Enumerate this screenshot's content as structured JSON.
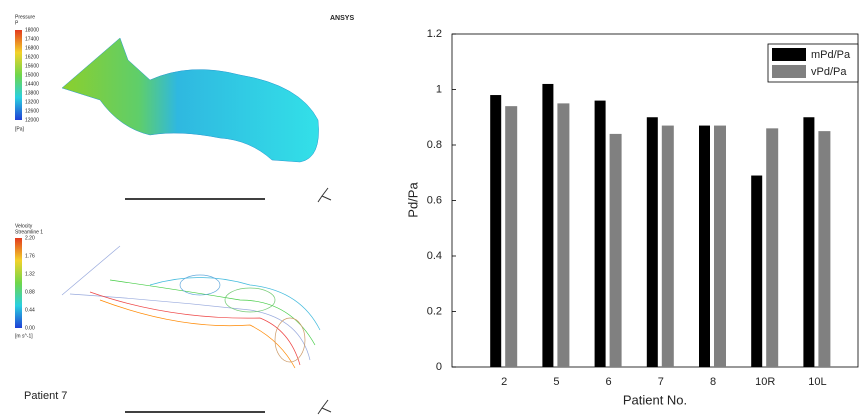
{
  "left_panel": {
    "brand": "ANSYS",
    "pressure_legend": {
      "title": "Pressure",
      "variable": "P",
      "labels": [
        "18000",
        "17400",
        "16800",
        "16200",
        "15600",
        "15000",
        "14400",
        "13800",
        "13200",
        "12600",
        "12000"
      ],
      "unit": "[Pa]"
    },
    "velocity_legend": {
      "title": "Velocity",
      "variable": "Streamline 1",
      "labels": [
        "2.20",
        "1.76",
        "1.32",
        "0.88",
        "0.44",
        "0.00"
      ],
      "unit": "[m s^-1]"
    },
    "caption": "Patient 7"
  },
  "chart_data": {
    "type": "bar",
    "categories": [
      "2",
      "5",
      "6",
      "7",
      "8",
      "10R",
      "10L"
    ],
    "series": [
      {
        "name": "mPd/Pa",
        "color": "#000000",
        "values": [
          0.98,
          1.02,
          0.96,
          0.9,
          0.87,
          0.69,
          0.9
        ]
      },
      {
        "name": "vPd/Pa",
        "color": "#808080",
        "values": [
          0.94,
          0.95,
          0.84,
          0.87,
          0.87,
          0.86,
          0.85
        ]
      }
    ],
    "x_label": "Patient No.",
    "y_label": "Pd/Pa",
    "ylim": [
      0,
      1.2
    ],
    "yticks": [
      0,
      0.2,
      0.4,
      0.6,
      0.8,
      1,
      1.2
    ],
    "legend": "top-right"
  }
}
